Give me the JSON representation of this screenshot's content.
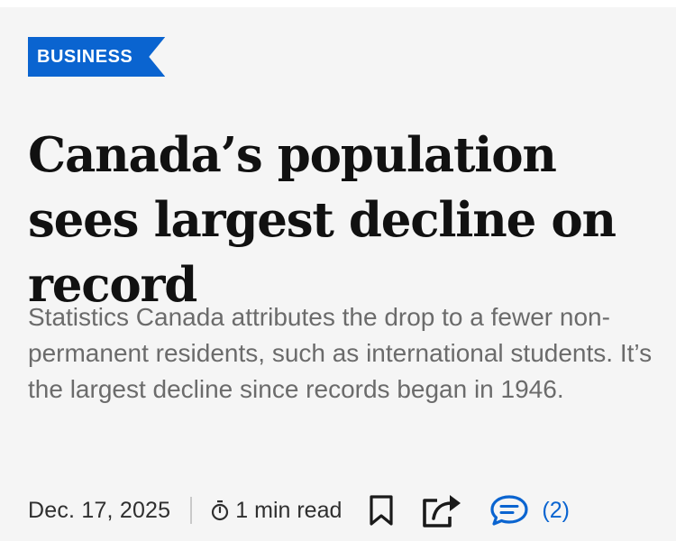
{
  "article": {
    "section": "BUSINESS",
    "headline": "Canada’s population sees largest decline on record",
    "dek": "Statistics Canada attributes the drop to a fewer non-permanent residents, such as international students. It’s the largest decline since records began in 1946.",
    "date": "Dec. 17, 2025",
    "read_time": "1 min read",
    "comment_count": "(2)"
  },
  "colors": {
    "accent": "#0a64d0",
    "card_background": "#f5f5f5",
    "headline": "#111111",
    "dek": "#6b6b6b"
  },
  "icons": [
    "timer-icon",
    "bookmark-icon",
    "share-icon",
    "comment-icon"
  ]
}
